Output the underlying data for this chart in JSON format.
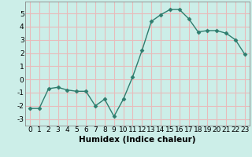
{
  "x": [
    0,
    1,
    2,
    3,
    4,
    5,
    6,
    7,
    8,
    9,
    10,
    11,
    12,
    13,
    14,
    15,
    16,
    17,
    18,
    19,
    20,
    21,
    22,
    23
  ],
  "y": [
    -2.2,
    -2.2,
    -0.7,
    -0.6,
    -0.8,
    -0.9,
    -0.9,
    -2.0,
    -1.5,
    -2.8,
    -1.5,
    0.2,
    2.2,
    4.4,
    4.9,
    5.3,
    5.3,
    4.6,
    3.6,
    3.7,
    3.7,
    3.5,
    3.0,
    1.9
  ],
  "xlabel": "Humidex (Indice chaleur)",
  "xlim": [
    -0.5,
    23.5
  ],
  "ylim": [
    -3.5,
    5.9
  ],
  "yticks": [
    -3,
    -2,
    -1,
    0,
    1,
    2,
    3,
    4,
    5
  ],
  "xticks": [
    0,
    1,
    2,
    3,
    4,
    5,
    6,
    7,
    8,
    9,
    10,
    11,
    12,
    13,
    14,
    15,
    16,
    17,
    18,
    19,
    20,
    21,
    22,
    23
  ],
  "line_color": "#2e7d6e",
  "marker": "D",
  "marker_size": 2.5,
  "bg_color": "#cceee8",
  "grid_color": "#e8bbbb",
  "tick_fontsize": 6.5,
  "xlabel_fontsize": 7.5,
  "xlabel_fontweight": "bold"
}
